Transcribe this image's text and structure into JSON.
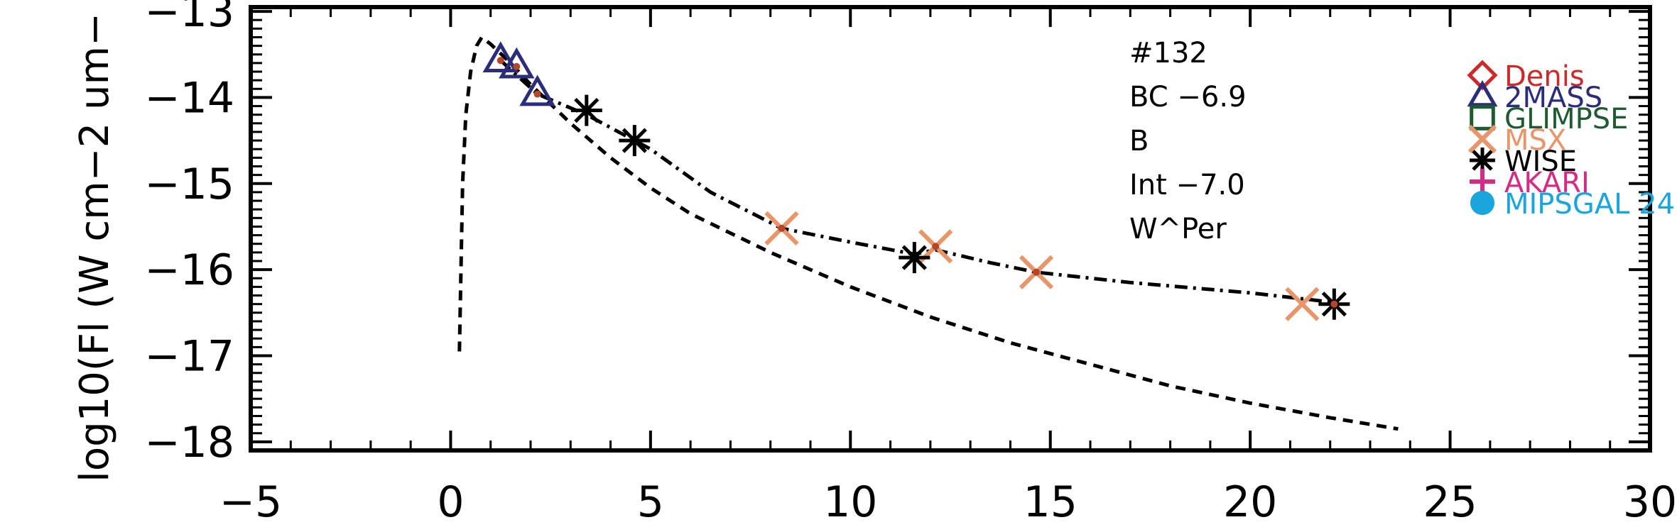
{
  "chart_data": {
    "type": "scatter",
    "xlim": [
      -5,
      30
    ],
    "ylim": [
      -18.1,
      -12.95
    ],
    "ylabel": "log10(Fl (W cm−2 um−",
    "xlabel": "",
    "grid": false,
    "legend_position": "right",
    "x_ticks": [
      {
        "value": -5,
        "label": "−5"
      },
      {
        "value": 0,
        "label": "0"
      },
      {
        "value": 5,
        "label": "5"
      },
      {
        "value": 10,
        "label": "10"
      },
      {
        "value": 15,
        "label": "15"
      },
      {
        "value": 20,
        "label": "20"
      },
      {
        "value": 25,
        "label": "25"
      },
      {
        "value": 30,
        "label": "30"
      }
    ],
    "y_ticks": [
      {
        "value": -13,
        "label": "−13"
      },
      {
        "value": -14,
        "label": "−14"
      },
      {
        "value": -15,
        "label": "−15"
      },
      {
        "value": -16,
        "label": "−16"
      },
      {
        "value": -17,
        "label": "−17"
      },
      {
        "value": -18,
        "label": "−18"
      }
    ],
    "annotations": [
      "#132",
      "BC −6.9",
      "B",
      "Int −7.0",
      "W^Per"
    ],
    "legend": [
      {
        "label": "Denis",
        "marker": "diamond",
        "color": "#cc2a2a"
      },
      {
        "label": "2MASS",
        "marker": "triangle",
        "color": "#2b2d7a"
      },
      {
        "label": "GLIMPSE",
        "marker": "square",
        "color": "#1e5b30"
      },
      {
        "label": "MSX",
        "marker": "x",
        "color": "#e8956a"
      },
      {
        "label": "WISE",
        "marker": "asterisk",
        "color": "#000000"
      },
      {
        "label": "AKARI",
        "marker": "plus",
        "color": "#d42c86"
      },
      {
        "label": "MIPSGAL 24",
        "marker": "circle",
        "color": "#1aa6dc"
      }
    ],
    "series": [
      {
        "marker": "triangle",
        "color": "#2b2d7a",
        "points": [
          [
            1.25,
            -13.57
          ],
          [
            1.65,
            -13.64
          ],
          [
            2.17,
            -13.96
          ]
        ]
      },
      {
        "marker": "x",
        "color": "#e8956a",
        "points": [
          [
            8.28,
            -15.52
          ],
          [
            12.13,
            -15.73
          ],
          [
            14.65,
            -16.03
          ],
          [
            21.3,
            -16.4
          ]
        ]
      },
      {
        "marker": "asterisk",
        "color": "#000000",
        "points": [
          [
            3.4,
            -14.15
          ],
          [
            4.6,
            -14.5
          ],
          [
            11.6,
            -15.86
          ],
          [
            22.1,
            -16.4
          ]
        ]
      }
    ],
    "model_points": [
      [
        1.25,
        -13.57
      ],
      [
        1.65,
        -13.64
      ],
      [
        2.17,
        -13.96
      ],
      [
        8.28,
        -15.52
      ],
      [
        12.13,
        -15.73
      ],
      [
        14.65,
        -16.03
      ],
      [
        22.1,
        -16.4
      ]
    ],
    "curves": [
      {
        "style": "dash-dot",
        "color": "#000000",
        "points": [
          [
            1.25,
            -13.57
          ],
          [
            2.17,
            -13.96
          ],
          [
            3.4,
            -14.2
          ],
          [
            5.0,
            -14.6
          ],
          [
            6.5,
            -15.1
          ],
          [
            8.28,
            -15.52
          ],
          [
            10.0,
            -15.68
          ],
          [
            11.6,
            -15.82
          ],
          [
            12.13,
            -15.77
          ],
          [
            13.5,
            -15.92
          ],
          [
            14.65,
            -16.03
          ],
          [
            17.0,
            -16.15
          ],
          [
            20.0,
            -16.27
          ],
          [
            22.1,
            -16.38
          ]
        ]
      },
      {
        "style": "dash",
        "color": "#000000",
        "points": [
          [
            0.22,
            -16.95
          ],
          [
            0.3,
            -15.0
          ],
          [
            0.38,
            -14.2
          ],
          [
            0.5,
            -13.7
          ],
          [
            0.65,
            -13.4
          ],
          [
            0.78,
            -13.3
          ],
          [
            1.0,
            -13.38
          ],
          [
            1.5,
            -13.6
          ],
          [
            2.0,
            -13.85
          ],
          [
            3.0,
            -14.3
          ],
          [
            4.0,
            -14.7
          ],
          [
            5.0,
            -15.05
          ],
          [
            6.0,
            -15.35
          ],
          [
            8.0,
            -15.8
          ],
          [
            10.0,
            -16.2
          ],
          [
            12.0,
            -16.55
          ],
          [
            14.0,
            -16.85
          ],
          [
            16.0,
            -17.1
          ],
          [
            18.0,
            -17.35
          ],
          [
            20.0,
            -17.55
          ],
          [
            22.0,
            -17.72
          ],
          [
            23.7,
            -17.85
          ]
        ]
      }
    ]
  }
}
